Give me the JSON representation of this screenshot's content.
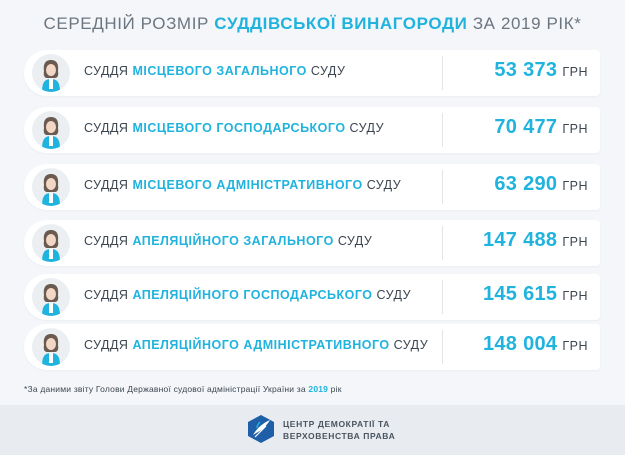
{
  "title": {
    "prefix": "СЕРЕДНІЙ РОЗМІР",
    "highlight": "СУДДІВСЬКОЇ ВИНАГОРОДИ",
    "suffix": "ЗА 2019 РІК*"
  },
  "rows": [
    {
      "prefix": "СУДДЯ",
      "highlight": "МІСЦЕВОГО ЗАГАЛЬНОГО",
      "suffix": "СУДУ",
      "amount": "53 373",
      "currency": "ГРН"
    },
    {
      "prefix": "СУДДЯ",
      "highlight": "МІСЦЕВОГО ГОСПОДАРСЬКОГО",
      "suffix": "СУДУ",
      "amount": "70 477",
      "currency": "ГРН"
    },
    {
      "prefix": "СУДДЯ",
      "highlight": "МІСЦЕВОГО АДМІНІСТРАТИВНОГО",
      "suffix": "СУДУ",
      "amount": "63 290",
      "currency": "ГРН"
    },
    {
      "prefix": "СУДДЯ",
      "highlight": "АПЕЛЯЦІЙНОГО ЗАГАЛЬНОГО",
      "suffix": "СУДУ",
      "amount": "147 488",
      "currency": "ГРН"
    },
    {
      "prefix": "СУДДЯ",
      "highlight": "АПЕЛЯЦІЙНОГО ГОСПОДАРСЬКОГО",
      "suffix": "СУДУ",
      "amount": "145 615",
      "currency": "ГРН"
    },
    {
      "prefix": "СУДДЯ",
      "highlight": "АПЕЛЯЦІЙНОГО АДМІНІСТРАТИВНОГО",
      "suffix": "СУДУ",
      "amount": "148 004",
      "currency": "ГРН"
    }
  ],
  "footnote": {
    "text": "*За даними звіту Голови Державної судової адміністрації України за",
    "year": "2019",
    "suffix": "рік"
  },
  "logo": {
    "line1": "ЦЕНТР ДЕМОКРАТІЇ ТА",
    "line2": "ВЕРХОВЕНСТВА ПРАВА"
  },
  "icons": {
    "row_avatar": "judge-avatar-icon",
    "logo": "center-logo-icon"
  },
  "colors": {
    "accent": "#1fb3de",
    "text": "#3c4650",
    "background": "#f4f6f9"
  }
}
